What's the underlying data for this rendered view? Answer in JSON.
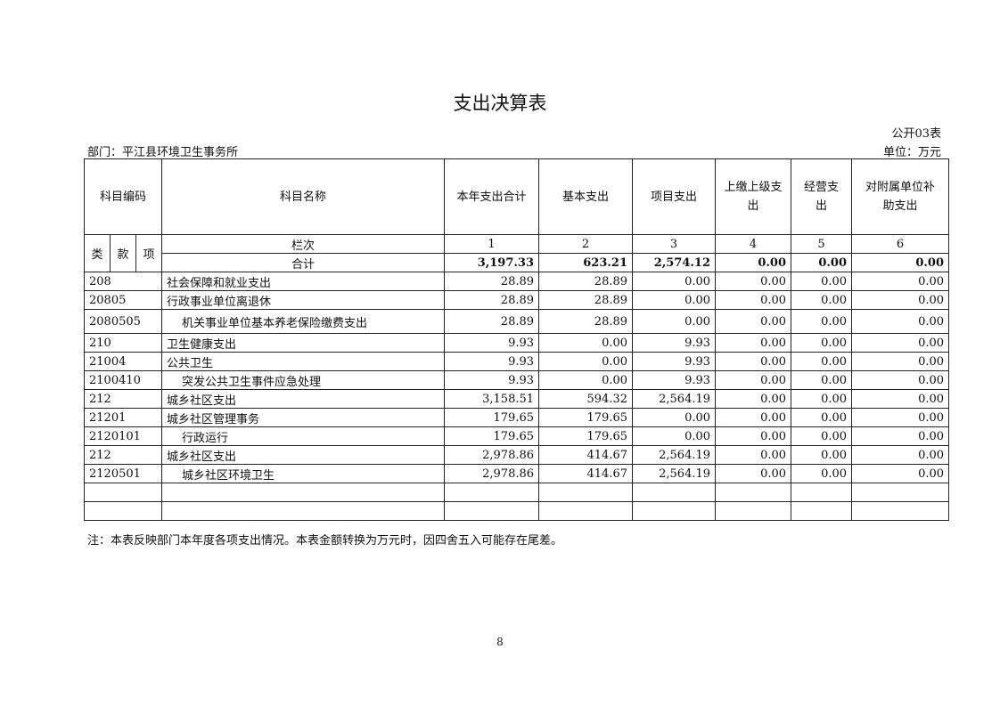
{
  "title": "支出决算表",
  "form_no": "公开03表",
  "department": "部门：平江县环境卫生事务所",
  "unit": "单位：万元",
  "headers": {
    "code": "科目编码",
    "name": "科目名称",
    "total": "本年支出合计",
    "basic": "基本支出",
    "project": "项目支出",
    "upper": "上缴上级支出",
    "business": "经营支出",
    "subsidy": "对附属单位补助支出",
    "lei": "类",
    "kuan": "款",
    "xiang": "项",
    "lanci": "栏次",
    "col_nums": [
      "1",
      "2",
      "3",
      "4",
      "5",
      "6"
    ]
  },
  "total_row": {
    "label": "合计",
    "values": [
      "3,197.33",
      "623.21",
      "2,574.12",
      "0.00",
      "0.00",
      "0.00"
    ]
  },
  "rows": [
    {
      "code": "208",
      "name": "社会保障和就业支出",
      "values": [
        "28.89",
        "28.89",
        "0.00",
        "0.00",
        "0.00",
        "0.00"
      ]
    },
    {
      "code": "20805",
      "name": "行政事业单位离退休",
      "values": [
        "28.89",
        "28.89",
        "0.00",
        "0.00",
        "0.00",
        "0.00"
      ]
    },
    {
      "code": "2080505",
      "name": "机关事业单位基本养老保险缴费支出",
      "values": [
        "28.89",
        "28.89",
        "0.00",
        "0.00",
        "0.00",
        "0.00"
      ]
    },
    {
      "code": "210",
      "name": "卫生健康支出",
      "values": [
        "9.93",
        "0.00",
        "9.93",
        "0.00",
        "0.00",
        "0.00"
      ]
    },
    {
      "code": "21004",
      "name": "公共卫生",
      "values": [
        "9.93",
        "0.00",
        "9.93",
        "0.00",
        "0.00",
        "0.00"
      ]
    },
    {
      "code": "2100410",
      "name": "突发公共卫生事件应急处理",
      "values": [
        "9.93",
        "0.00",
        "9.93",
        "0.00",
        "0.00",
        "0.00"
      ]
    },
    {
      "code": "212",
      "name": "城乡社区支出",
      "values": [
        "3,158.51",
        "594.32",
        "2,564.19",
        "0.00",
        "0.00",
        "0.00"
      ]
    },
    {
      "code": "21201",
      "name": "城乡社区管理事务",
      "values": [
        "179.65",
        "179.65",
        "0.00",
        "0.00",
        "0.00",
        "0.00"
      ]
    },
    {
      "code": "2120101",
      "name": "行政运行",
      "values": [
        "179.65",
        "179.65",
        "0.00",
        "0.00",
        "0.00",
        "0.00"
      ]
    },
    {
      "code": "212",
      "name": "城乡社区支出",
      "values": [
        "2,978.86",
        "414.67",
        "2,564.19",
        "0.00",
        "0.00",
        "0.00"
      ]
    },
    {
      "code": "2120501",
      "name": "城乡社区环境卫生",
      "values": [
        "2,978.86",
        "414.67",
        "2,564.19",
        "0.00",
        "0.00",
        "0.00"
      ]
    }
  ],
  "note": "注：本表反映部门本年度各项支出情况。本表金额转换为万元时，因四舍五入可能存在尾差。",
  "page_number": "8"
}
